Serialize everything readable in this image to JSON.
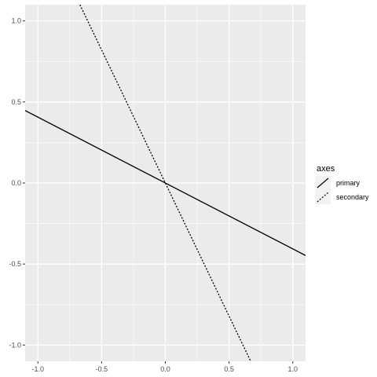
{
  "chart_data": {
    "type": "line",
    "xlim": [
      -1.1,
      1.1
    ],
    "ylim": [
      -1.1,
      1.1
    ],
    "x_ticks": [
      -1.0,
      -0.5,
      0.0,
      0.5,
      1.0
    ],
    "y_ticks": [
      -1.0,
      -0.5,
      0.0,
      0.5,
      1.0
    ],
    "x_tick_labels": [
      "-1.0",
      "-0.5",
      "0.0",
      "0.5",
      "1.0"
    ],
    "y_tick_labels": [
      "-1.0",
      "-0.5",
      "0.0",
      "0.5",
      "1.0"
    ],
    "grid": true,
    "legend": {
      "title": "axes",
      "position": "right"
    },
    "series": [
      {
        "name": "primary",
        "linetype": "solid",
        "x": [
          -1.1,
          1.1
        ],
        "y": [
          0.447,
          -0.447
        ]
      },
      {
        "name": "secondary",
        "linetype": "dotted",
        "x": [
          -0.67,
          0.67
        ],
        "y": [
          1.1,
          -1.1
        ]
      }
    ],
    "colors": {
      "panel_background": "#ebebeb",
      "grid_major": "#ffffff",
      "line": "#000000"
    }
  }
}
